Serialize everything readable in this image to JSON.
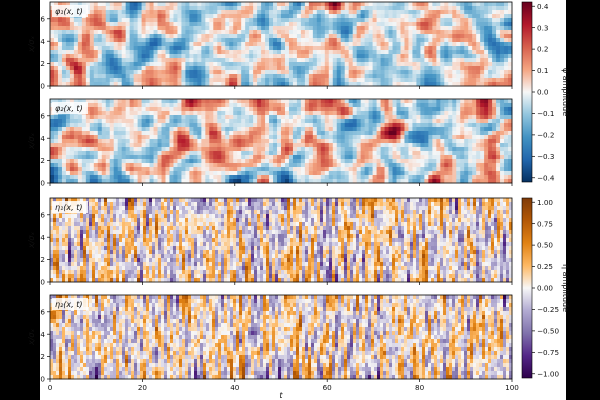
{
  "chart_data": [
    {
      "type": "heatmap",
      "label": "φ₁(x, t)",
      "ylabel": "x/σₓ",
      "xlim": [
        0,
        100
      ],
      "ylim": [
        0,
        7.5
      ],
      "xticks": [
        "0",
        "20",
        "40",
        "60",
        "80",
        "100"
      ],
      "yticks": [
        "0",
        "2",
        "4",
        "6"
      ],
      "colormap": "red-white-blue",
      "clim": [
        -0.43,
        0.43
      ]
    },
    {
      "type": "heatmap",
      "label": "φ₂(x, t)",
      "ylabel": "x/σₓ",
      "xlim": [
        0,
        100
      ],
      "ylim": [
        0,
        7.5
      ],
      "xticks": [
        "0",
        "20",
        "40",
        "60",
        "80",
        "100"
      ],
      "yticks": [
        "0",
        "2",
        "4",
        "6"
      ],
      "colormap": "red-white-blue",
      "clim": [
        -0.43,
        0.43
      ]
    },
    {
      "type": "heatmap",
      "label": "η₁(x, t)",
      "ylabel": "x/σₓ",
      "xlim": [
        0,
        100
      ],
      "ylim": [
        0,
        7.5
      ],
      "xticks": [
        "0",
        "20",
        "40",
        "60",
        "80",
        "100"
      ],
      "yticks": [
        "0",
        "2",
        "4",
        "6"
      ],
      "colormap": "purple-white-orange",
      "clim": [
        -1.0,
        1.0
      ]
    },
    {
      "type": "heatmap",
      "label": "η₂(x, t)",
      "ylabel": "x/σₓ",
      "xlabel": "t",
      "xlim": [
        0,
        100
      ],
      "ylim": [
        0,
        7.5
      ],
      "xticks": [
        "0",
        "20",
        "40",
        "60",
        "80",
        "100"
      ],
      "yticks": [
        "0",
        "2",
        "4",
        "6"
      ],
      "colormap": "purple-white-orange",
      "clim": [
        -1.0,
        1.0
      ]
    }
  ],
  "colorbars": [
    {
      "label": "φ amplitude",
      "ticks": [
        "0.4",
        "0.3",
        "0.2",
        "0.1",
        "0.0",
        "−0.1",
        "−0.2",
        "−0.3",
        "−0.4"
      ],
      "top_color": "#67001f",
      "mid_color": "#f7f7f7",
      "bottom_color": "#053061"
    },
    {
      "label": "η amplitude",
      "ticks": [
        "1.00",
        "0.75",
        "0.50",
        "0.25",
        "0.00",
        "−0.25",
        "−0.50",
        "−0.75",
        "−1.00"
      ],
      "top_color": "#7f3b08",
      "mid_color": "#f7f7f7",
      "bottom_color": "#2d004b"
    }
  ],
  "shared_xlabel": "t"
}
